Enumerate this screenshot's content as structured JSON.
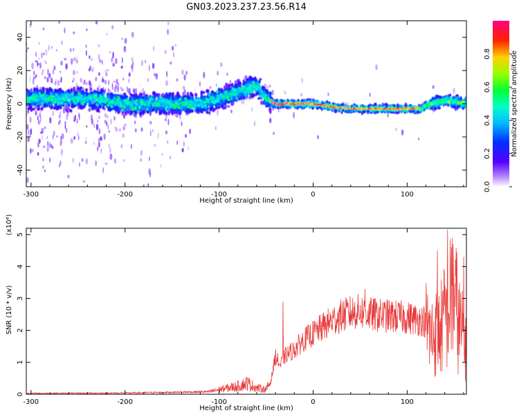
{
  "title": "GN03.2023.237.23.56.R14",
  "chart_data": [
    {
      "type": "heatmap",
      "xlabel": "Height of straight line (km)",
      "ylabel": "Frequency (Hz)",
      "xlim": [
        -305,
        163
      ],
      "ylim": [
        -50,
        50
      ],
      "xticks": [
        -300,
        -200,
        -100,
        0,
        100
      ],
      "yticks": [
        -40,
        -20,
        0,
        20,
        40
      ],
      "colorbar": {
        "label": "Normalized spectral amplitude",
        "range": [
          0,
          1
        ],
        "ticks": [
          "0.0",
          "0.2",
          "0.4",
          "0.6",
          "0.8"
        ],
        "tick_values": [
          0,
          0.2,
          0.4,
          0.6,
          0.8
        ],
        "colormap": "rainbow"
      },
      "ridge": {
        "x": [
          -305,
          -270,
          -230,
          -200,
          -150,
          -120,
          -95,
          -75,
          -60,
          -52,
          -45,
          -40,
          -30,
          0,
          20,
          40,
          100,
          115,
          125,
          140,
          163
        ],
        "y": [
          3,
          3,
          3,
          0,
          0,
          0,
          4,
          8,
          11,
          5,
          1,
          0,
          0,
          0,
          -2,
          -3,
          -3,
          -3,
          0,
          2,
          0
        ]
      }
    },
    {
      "type": "line",
      "xlabel": "Height of straight line (km)",
      "ylabel": "SNR (10 * v/v)",
      "yscale_label": "(x10⁴)",
      "xlim": [
        -305,
        163
      ],
      "ylim": [
        0,
        5.2
      ],
      "xticks": [
        -300,
        -200,
        -100,
        0,
        100
      ],
      "yticks": [
        0,
        1,
        2,
        3,
        4,
        5
      ],
      "series": [
        {
          "color": "#e83b3b",
          "envelope": {
            "x": [
              -305,
              -200,
              -150,
              -110,
              -100,
              -80,
              -70,
              -60,
              -50,
              -45,
              -40,
              -35,
              -30,
              -20,
              -10,
              0,
              10,
              20,
              30,
              40,
              50,
              60,
              80,
              100,
              118,
              125,
              135,
              145,
              150,
              155,
              163
            ],
            "y": [
              0.03,
              0.04,
              0.06,
              0.08,
              0.15,
              0.25,
              0.35,
              0.2,
              0.15,
              0.4,
              1.2,
              0.9,
              1.2,
              1.4,
              1.7,
              1.9,
              2.1,
              2.3,
              2.45,
              2.55,
              2.6,
              2.5,
              2.45,
              2.4,
              2.3,
              1.8,
              2.0,
              2.8,
              3.2,
              2.2,
              1.5
            ]
          },
          "peaks": [
            {
              "x": -32,
              "y": 2.9
            },
            {
              "x": 55,
              "y": 3.3
            },
            {
              "x": 132,
              "y": 4.5
            },
            {
              "x": 143,
              "y": 5.15
            },
            {
              "x": 148,
              "y": 4.9
            },
            {
              "x": 160,
              "y": 4.3
            }
          ]
        }
      ]
    }
  ]
}
